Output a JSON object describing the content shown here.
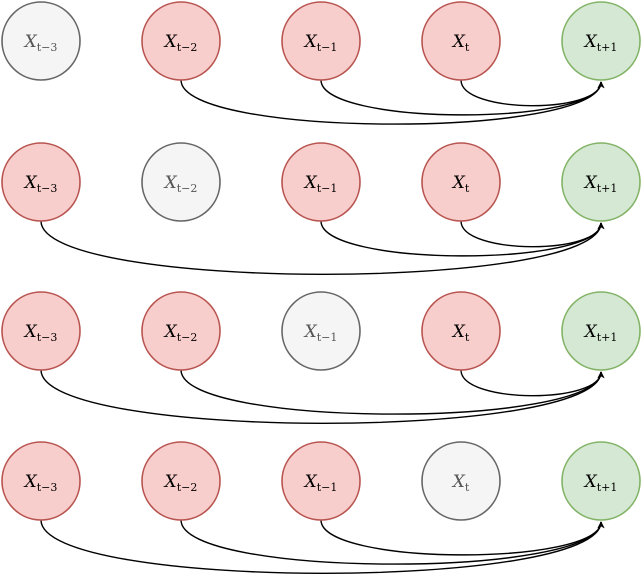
{
  "colors": {
    "observed_fill": "#f8cecc",
    "observed_stroke": "#b85450",
    "masked_fill": "#f5f5f5",
    "masked_stroke": "#666666",
    "masked_text": "#555555",
    "target_fill": "#d5e8d4",
    "target_stroke": "#82b366",
    "edge": "#000000"
  },
  "rows": [
    {
      "nodes": [
        {
          "var": "X",
          "sub": "t−3",
          "state": "masked"
        },
        {
          "var": "X",
          "sub": "t−2",
          "state": "observed"
        },
        {
          "var": "X",
          "sub": "t−1",
          "state": "observed"
        },
        {
          "var": "X",
          "sub": "t",
          "state": "observed"
        },
        {
          "var": "X",
          "sub": "t+1",
          "state": "target"
        }
      ]
    },
    {
      "nodes": [
        {
          "var": "X",
          "sub": "t−3",
          "state": "observed"
        },
        {
          "var": "X",
          "sub": "t−2",
          "state": "masked"
        },
        {
          "var": "X",
          "sub": "t−1",
          "state": "observed"
        },
        {
          "var": "X",
          "sub": "t",
          "state": "observed"
        },
        {
          "var": "X",
          "sub": "t+1",
          "state": "target"
        }
      ]
    },
    {
      "nodes": [
        {
          "var": "X",
          "sub": "t−3",
          "state": "observed"
        },
        {
          "var": "X",
          "sub": "t−2",
          "state": "observed"
        },
        {
          "var": "X",
          "sub": "t−1",
          "state": "masked"
        },
        {
          "var": "X",
          "sub": "t",
          "state": "observed"
        },
        {
          "var": "X",
          "sub": "t+1",
          "state": "target"
        }
      ]
    },
    {
      "nodes": [
        {
          "var": "X",
          "sub": "t−3",
          "state": "observed"
        },
        {
          "var": "X",
          "sub": "t−2",
          "state": "observed"
        },
        {
          "var": "X",
          "sub": "t−1",
          "state": "observed"
        },
        {
          "var": "X",
          "sub": "t",
          "state": "masked"
        },
        {
          "var": "X",
          "sub": "t+1",
          "state": "target"
        }
      ]
    }
  ]
}
